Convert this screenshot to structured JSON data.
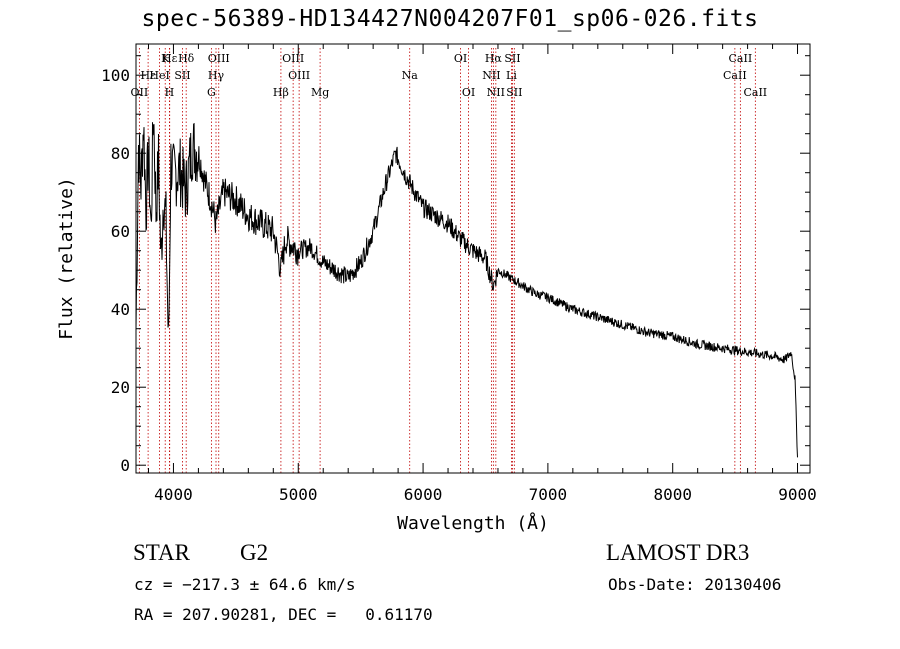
{
  "chart_data": {
    "type": "line",
    "title": "spec-56389-HD134427N004207F01_sp06-026.fits",
    "xlabel": "Wavelength (Å)",
    "ylabel": "Flux (relative)",
    "xlim": [
      3700,
      9100
    ],
    "ylim": [
      -2,
      108
    ],
    "xticks": [
      "4000",
      "5000",
      "6000",
      "7000",
      "8000",
      "9000"
    ],
    "yticks": [
      "0",
      "20",
      "40",
      "60",
      "80",
      "100"
    ],
    "series": [
      {
        "x": [
          3700,
          3720,
          3740,
          3760,
          3780,
          3800,
          3820,
          3840,
          3860,
          3880,
          3900,
          3920,
          3940,
          3960,
          3980,
          4000,
          4050,
          4100,
          4150,
          4200,
          4250,
          4300,
          4340,
          4400,
          4500,
          4600,
          4700,
          4800,
          4861,
          4900,
          5000,
          5100,
          5200,
          5300,
          5400,
          5500,
          5600,
          5700,
          5780,
          5850,
          5900,
          6000,
          6100,
          6200,
          6300,
          6400,
          6500,
          6563,
          6600,
          6700,
          6800,
          6900,
          7000,
          7200,
          7400,
          7600,
          7800,
          8000,
          8200,
          8400,
          8600,
          8800,
          8900,
          8950,
          8980,
          9000
        ],
        "y": [
          35,
          82,
          72,
          88,
          66,
          80,
          60,
          92,
          65,
          78,
          52,
          70,
          62,
          30,
          78,
          74,
          76,
          70,
          82,
          80,
          73,
          68,
          62,
          70,
          68,
          64,
          62,
          60,
          50,
          58,
          55,
          56,
          52,
          50,
          48,
          52,
          60,
          72,
          80,
          75,
          72,
          66,
          64,
          62,
          58,
          55,
          53,
          46,
          50,
          48,
          46,
          44,
          43,
          40,
          38,
          36,
          34,
          33,
          31,
          30,
          29,
          28,
          27,
          29,
          22,
          2
        ]
      }
    ],
    "line_names": [
      "Hβ",
      "Hδ",
      "Hγ",
      "Hβ",
      "Hα",
      "O II",
      "Mg",
      "Na",
      "O I",
      "N II",
      "S II",
      "Li",
      "Ca II"
    ],
    "lines": [
      {
        "name": "Hε",
        "wl": 3970,
        "row": 0
      },
      {
        "name": "K",
        "wl": 3934,
        "row": 0
      },
      {
        "name": "Hδ",
        "wl": 4102,
        "row": 0
      },
      {
        "name": "OIII",
        "wl": 4363,
        "row": 0
      },
      {
        "name": "OIII",
        "wl": 4959,
        "row": 0
      },
      {
        "name": "OI",
        "wl": 6300,
        "row": 0
      },
      {
        "name": "Hα",
        "wl": 6563,
        "row": 0
      },
      {
        "name": "SII",
        "wl": 6716,
        "row": 0
      },
      {
        "name": "CaII",
        "wl": 8542,
        "row": 0
      },
      {
        "name": "Hε",
        "wl": 3797,
        "row": 1
      },
      {
        "name": "HeI",
        "wl": 3889,
        "row": 1
      },
      {
        "name": "SII",
        "wl": 4072,
        "row": 1
      },
      {
        "name": "Hγ",
        "wl": 4341,
        "row": 1
      },
      {
        "name": "OIII",
        "wl": 5007,
        "row": 1
      },
      {
        "name": "Na",
        "wl": 5893,
        "row": 1
      },
      {
        "name": "NII",
        "wl": 6548,
        "row": 1
      },
      {
        "name": "Li",
        "wl": 6708,
        "row": 1
      },
      {
        "name": "CaII",
        "wl": 8498,
        "row": 1
      },
      {
        "name": "OII",
        "wl": 3727,
        "row": 2
      },
      {
        "name": "H",
        "wl": 3968,
        "row": 2
      },
      {
        "name": "G",
        "wl": 4304,
        "row": 2
      },
      {
        "name": "Hβ",
        "wl": 4861,
        "row": 2
      },
      {
        "name": "Mg",
        "wl": 5175,
        "row": 2
      },
      {
        "name": "OI",
        "wl": 6364,
        "row": 2
      },
      {
        "name": "NII",
        "wl": 6583,
        "row": 2
      },
      {
        "name": "SII",
        "wl": 6731,
        "row": 2
      },
      {
        "name": "CaII",
        "wl": 8662,
        "row": 2
      }
    ],
    "line_color": "#c00000"
  },
  "info": {
    "class": "STAR",
    "subclass": "G2",
    "survey": "LAMOST DR3",
    "cz": "cz = −217.3 ± 64.6 km/s",
    "obsdate": "Obs-Date: 20130406",
    "radec": "RA = 207.90281, DEC =   0.61170"
  }
}
